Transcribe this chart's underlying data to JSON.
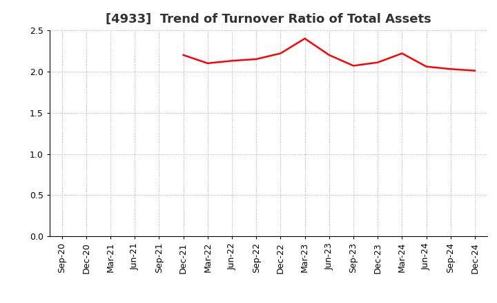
{
  "title": "[4933]  Trend of Turnover Ratio of Total Assets",
  "all_labels": [
    "Sep-20",
    "Dec-20",
    "Mar-21",
    "Jun-21",
    "Sep-21",
    "Dec-21",
    "Mar-22",
    "Jun-22",
    "Sep-22",
    "Dec-22",
    "Mar-23",
    "Jun-23",
    "Sep-23",
    "Dec-23",
    "Mar-24",
    "Jun-24",
    "Sep-24",
    "Dec-24"
  ],
  "values_map": {
    "Dec-21": 2.2,
    "Mar-22": 2.1,
    "Jun-22": 2.13,
    "Sep-22": 2.15,
    "Dec-22": 2.22,
    "Mar-23": 2.4,
    "Jun-23": 2.2,
    "Sep-23": 2.07,
    "Dec-23": 2.11,
    "Mar-24": 2.22,
    "Jun-24": 2.06,
    "Sep-24": 2.03,
    "Dec-24": 2.01
  },
  "line_color": "#FF0000",
  "line_width": 1.8,
  "ylim": [
    0.0,
    2.5
  ],
  "yticks": [
    0.0,
    0.5,
    1.0,
    1.5,
    2.0,
    2.5
  ],
  "background_color": "#FFFFFF",
  "grid_color": "#AAAAAA",
  "title_fontsize": 13,
  "tick_fontsize": 9,
  "title_color": "#333333"
}
